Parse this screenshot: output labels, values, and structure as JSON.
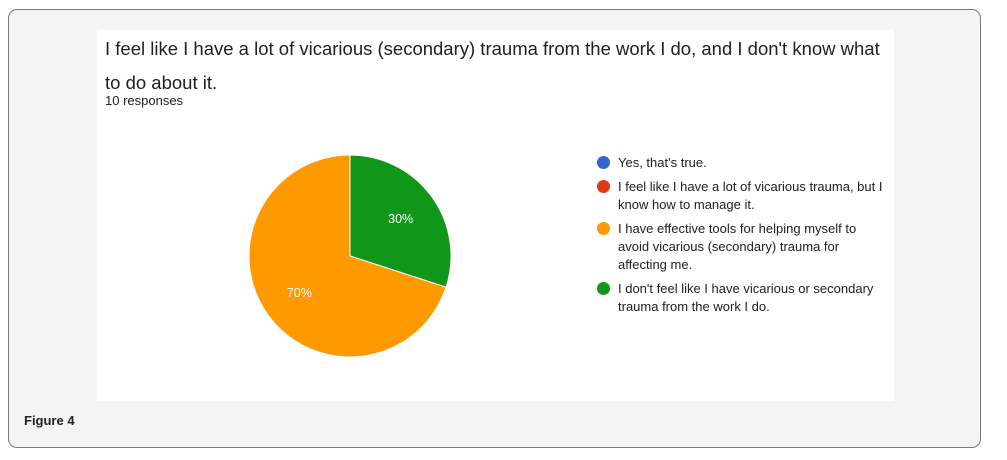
{
  "figure_caption": "Figure 4",
  "chart_data": {
    "type": "pie",
    "title": "I feel like I have a lot of vicarious (secondary) trauma from the work I do, and I don't know what to do about it.",
    "subtitle": "10 responses",
    "legend_position": "right",
    "slices": [
      {
        "label": "Yes, that's true.",
        "value": 0,
        "percent_label": "",
        "color": "#3366cc"
      },
      {
        "label": "I feel like I have a lot of vicarious trauma, but I know how to manage it.",
        "value": 0,
        "percent_label": "",
        "color": "#dc3912"
      },
      {
        "label": "I have effective tools for helping myself to avoid vicarious (secondary) trauma for affecting me.",
        "value": 70,
        "percent_label": "70%",
        "color": "#ff9900"
      },
      {
        "label": "I don't feel like I have vicarious or secondary trauma from the work I do.",
        "value": 30,
        "percent_label": "30%",
        "color": "#109618"
      }
    ]
  }
}
